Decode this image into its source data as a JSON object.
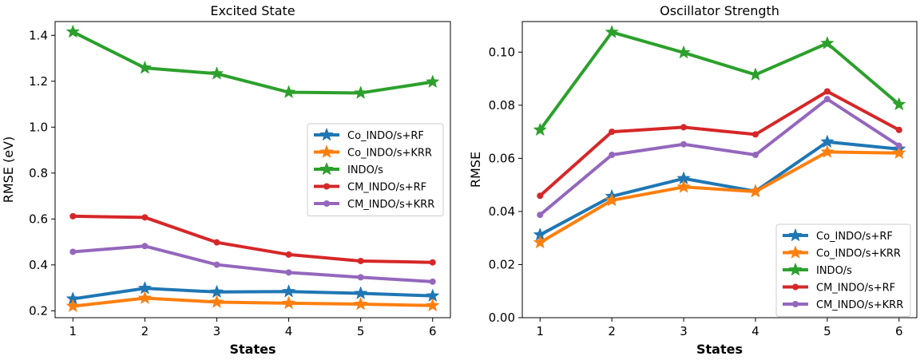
{
  "chart_data": [
    {
      "type": "line",
      "title": "Excited State",
      "xlabel": "States",
      "ylabel": "RMSE (eV)",
      "x": [
        1,
        2,
        3,
        4,
        5,
        6
      ],
      "xticks": [
        "1",
        "2",
        "3",
        "4",
        "5",
        "6"
      ],
      "ylim": [
        0.17,
        1.46
      ],
      "yticks": [
        "0.2",
        "0.4",
        "0.6",
        "0.8",
        "1.0",
        "1.2",
        "1.4"
      ],
      "ytick_values": [
        0.2,
        0.4,
        0.6,
        0.8,
        1.0,
        1.2,
        1.4
      ],
      "legend_position": "center-right",
      "series": [
        {
          "name": "Co_INDO/s+RF",
          "color": "#1f77b4",
          "marker": "star",
          "values": [
            0.252,
            0.298,
            0.282,
            0.284,
            0.276,
            0.265
          ]
        },
        {
          "name": "Co_INDO/s+KRR",
          "color": "#ff7f0e",
          "marker": "star",
          "values": [
            0.22,
            0.255,
            0.238,
            0.233,
            0.229,
            0.223
          ]
        },
        {
          "name": "INDO/s",
          "color": "#2ca02c",
          "marker": "star",
          "values": [
            1.415,
            1.258,
            1.233,
            1.152,
            1.149,
            1.197
          ]
        },
        {
          "name": "CM_INDO/s+RF",
          "color": "#d62728",
          "marker": "circle",
          "values": [
            0.612,
            0.607,
            0.498,
            0.445,
            0.417,
            0.411
          ]
        },
        {
          "name": "CM_INDO/s+KRR",
          "color": "#9467bd",
          "marker": "circle",
          "values": [
            0.457,
            0.482,
            0.401,
            0.367,
            0.346,
            0.327
          ]
        }
      ]
    },
    {
      "type": "line",
      "title": "Oscillator Strength",
      "xlabel": "States",
      "ylabel": "RMSE",
      "x": [
        1,
        2,
        3,
        4,
        5,
        6
      ],
      "xticks": [
        "1",
        "2",
        "3",
        "4",
        "5",
        "6"
      ],
      "ylim": [
        0.0,
        0.1115
      ],
      "yticks": [
        "0.00",
        "0.02",
        "0.04",
        "0.06",
        "0.08",
        "0.10"
      ],
      "ytick_values": [
        0.0,
        0.02,
        0.04,
        0.06,
        0.08,
        0.1
      ],
      "legend_position": "lower-right",
      "series": [
        {
          "name": "Co_INDO/s+RF",
          "color": "#1f77b4",
          "marker": "star",
          "values": [
            0.0312,
            0.0457,
            0.0524,
            0.0476,
            0.0662,
            0.0635
          ]
        },
        {
          "name": "Co_INDO/s+KRR",
          "color": "#ff7f0e",
          "marker": "star",
          "values": [
            0.0283,
            0.0442,
            0.0492,
            0.0475,
            0.0624,
            0.062
          ]
        },
        {
          "name": "INDO/s",
          "color": "#2ca02c",
          "marker": "star",
          "values": [
            0.0707,
            0.1075,
            0.0998,
            0.0915,
            0.1033,
            0.0803
          ]
        },
        {
          "name": "CM_INDO/s+RF",
          "color": "#d62728",
          "marker": "circle",
          "values": [
            0.0459,
            0.07,
            0.0717,
            0.069,
            0.0852,
            0.0707
          ]
        },
        {
          "name": "CM_INDO/s+KRR",
          "color": "#9467bd",
          "marker": "circle",
          "values": [
            0.0387,
            0.0613,
            0.0653,
            0.0613,
            0.0823,
            0.0647
          ]
        }
      ]
    }
  ]
}
